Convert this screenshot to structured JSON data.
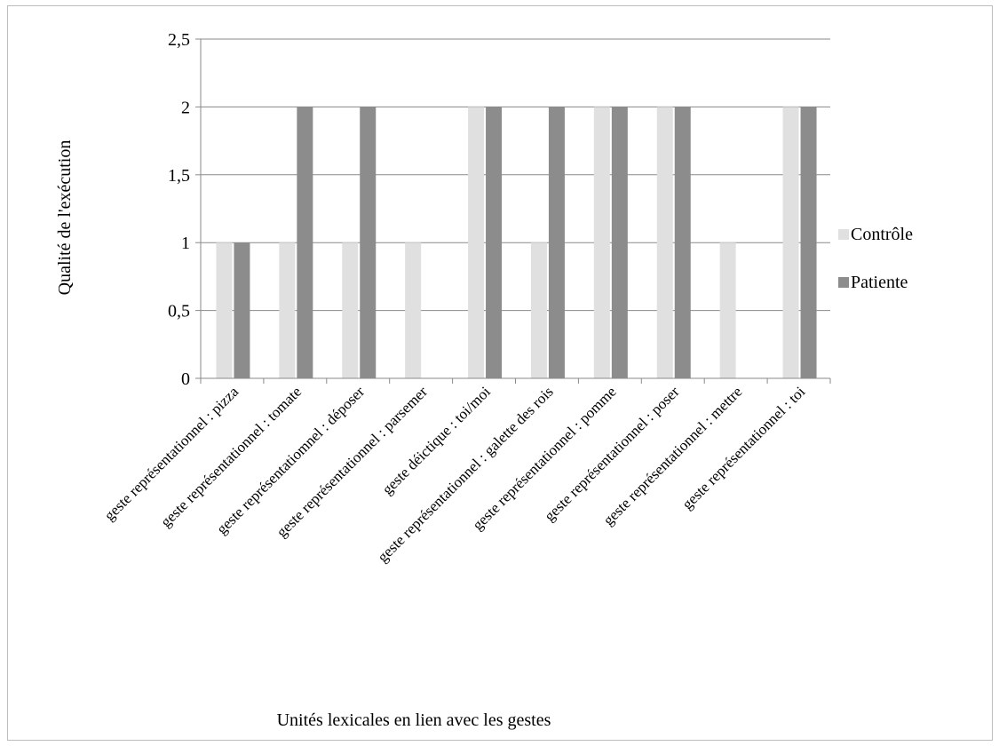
{
  "chart_data": {
    "type": "bar",
    "title": "",
    "xlabel": "Unités lexicales en lien avec les gestes",
    "ylabel": "Qualité de l'exécution",
    "ylim": [
      0,
      2.5
    ],
    "yticks": [
      "0",
      "0,5",
      "1",
      "1,5",
      "2",
      "2,5"
    ],
    "ytick_values": [
      0,
      0.5,
      1,
      1.5,
      2,
      2.5
    ],
    "grid": true,
    "legend_position": "right",
    "categories": [
      "geste représentationnel : pizza",
      "geste représentationnel : tomate",
      "geste représentatiomnel : déposer",
      "geste représentationnel : parsemer",
      "geste déictique : toi/moi",
      "geste représentationnel : galette des rois",
      "geste représentationnel : pomme",
      "geste représentationnel : poser",
      "geste représentationnel : mettre",
      "geste représentationnel : toi"
    ],
    "series": [
      {
        "name": "Contrôle",
        "color": "#e0e0e0",
        "values": [
          1,
          1,
          1,
          1,
          2,
          1,
          2,
          2,
          1,
          2
        ]
      },
      {
        "name": "Patiente",
        "color": "#8c8c8c",
        "values": [
          1,
          2,
          2,
          0,
          2,
          2,
          2,
          2,
          0,
          2
        ]
      }
    ]
  }
}
